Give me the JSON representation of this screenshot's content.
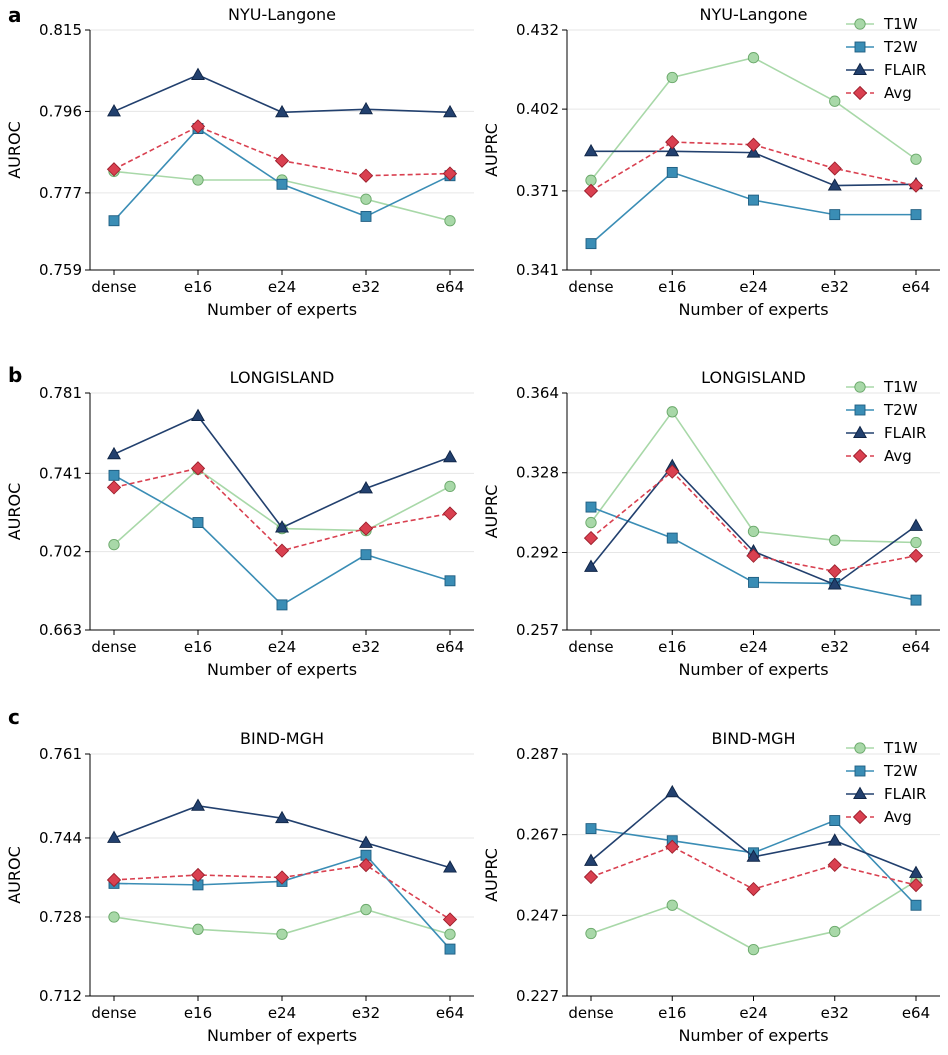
{
  "panel_letters": [
    "a",
    "b",
    "c"
  ],
  "colors": {
    "T1W": "#a8d8a8",
    "T2W": "#3a8db5",
    "FLAIR": "#22406e",
    "Avg": "#d94050",
    "grid": "#e6e6e6"
  },
  "chart_data": [
    {
      "type": "line",
      "title": "NYU-Langone",
      "xlabel": "Number of experts",
      "ylabel": "AUROC",
      "categories": [
        "dense",
        "e16",
        "e24",
        "e32",
        "e64"
      ],
      "yticks": [
        "0.759",
        "0.777",
        "0.796",
        "0.815"
      ],
      "ylim": [
        0.759,
        0.815
      ],
      "legend": false,
      "legend_position": "none",
      "series": [
        {
          "name": "T1W",
          "values": [
            0.782,
            0.78,
            0.78,
            0.7755,
            0.7705
          ]
        },
        {
          "name": "T2W",
          "values": [
            0.7705,
            0.792,
            0.779,
            0.7715,
            0.781
          ]
        },
        {
          "name": "FLAIR",
          "values": [
            0.796,
            0.8045,
            0.7958,
            0.7965,
            0.7958
          ]
        },
        {
          "name": "Avg",
          "values": [
            0.7825,
            0.7925,
            0.7845,
            0.781,
            0.7815
          ]
        }
      ]
    },
    {
      "type": "line",
      "title": "NYU-Langone",
      "xlabel": "Number of experts",
      "ylabel": "AUPRC",
      "categories": [
        "dense",
        "e16",
        "e24",
        "e32",
        "e64"
      ],
      "yticks": [
        "0.341",
        "0.371",
        "0.402",
        "0.432"
      ],
      "ylim": [
        0.341,
        0.432
      ],
      "legend": true,
      "legend_position": "top-right",
      "series": [
        {
          "name": "T1W",
          "values": [
            0.375,
            0.414,
            0.4215,
            0.405,
            0.383
          ]
        },
        {
          "name": "T2W",
          "values": [
            0.351,
            0.378,
            0.3675,
            0.362,
            0.362
          ]
        },
        {
          "name": "FLAIR",
          "values": [
            0.386,
            0.386,
            0.3855,
            0.373,
            0.3735
          ]
        },
        {
          "name": "Avg",
          "values": [
            0.371,
            0.3895,
            0.3885,
            0.3795,
            0.373
          ]
        }
      ]
    },
    {
      "type": "line",
      "title": "LONGISLAND",
      "xlabel": "Number of experts",
      "ylabel": "AUROC",
      "categories": [
        "dense",
        "e16",
        "e24",
        "e32",
        "e64"
      ],
      "yticks": [
        "0.663",
        "0.702",
        "0.741",
        "0.781"
      ],
      "ylim": [
        0.663,
        0.781
      ],
      "legend": false,
      "legend_position": "none",
      "series": [
        {
          "name": "T1W",
          "values": [
            0.7055,
            0.743,
            0.7135,
            0.7125,
            0.7345
          ]
        },
        {
          "name": "T2W",
          "values": [
            0.74,
            0.7165,
            0.6755,
            0.7005,
            0.6875
          ]
        },
        {
          "name": "FLAIR",
          "values": [
            0.7505,
            0.7695,
            0.714,
            0.7335,
            0.749
          ]
        },
        {
          "name": "Avg",
          "values": [
            0.734,
            0.7435,
            0.7025,
            0.7135,
            0.721
          ]
        }
      ]
    },
    {
      "type": "line",
      "title": "LONGISLAND",
      "xlabel": "Number of experts",
      "ylabel": "AUPRC",
      "categories": [
        "dense",
        "e16",
        "e24",
        "e32",
        "e64"
      ],
      "yticks": [
        "0.257",
        "0.292",
        "0.328",
        "0.364"
      ],
      "ylim": [
        0.257,
        0.364
      ],
      "legend": true,
      "legend_position": "top-right",
      "series": [
        {
          "name": "T1W",
          "values": [
            0.3055,
            0.3555,
            0.3015,
            0.2975,
            0.2965
          ]
        },
        {
          "name": "T2W",
          "values": [
            0.3125,
            0.2985,
            0.2785,
            0.278,
            0.2705
          ]
        },
        {
          "name": "FLAIR",
          "values": [
            0.2855,
            0.331,
            0.2925,
            0.2775,
            0.304
          ]
        },
        {
          "name": "Avg",
          "values": [
            0.2985,
            0.3285,
            0.2905,
            0.2835,
            0.2905
          ]
        }
      ]
    },
    {
      "type": "line",
      "title": "BIND-MGH",
      "xlabel": "Number of experts",
      "ylabel": "AUROC",
      "categories": [
        "dense",
        "e16",
        "e24",
        "e32",
        "e64"
      ],
      "yticks": [
        "0.712",
        "0.728",
        "0.744",
        "0.761"
      ],
      "ylim": [
        0.712,
        0.761
      ],
      "legend": false,
      "legend_position": "none",
      "series": [
        {
          "name": "T1W",
          "values": [
            0.728,
            0.7255,
            0.7245,
            0.7295,
            0.7245
          ]
        },
        {
          "name": "T2W",
          "values": [
            0.7348,
            0.7345,
            0.7352,
            0.7405,
            0.7215
          ]
        },
        {
          "name": "FLAIR",
          "values": [
            0.744,
            0.7505,
            0.748,
            0.743,
            0.738
          ]
        },
        {
          "name": "Avg",
          "values": [
            0.7355,
            0.7365,
            0.736,
            0.7385,
            0.7275
          ]
        }
      ]
    },
    {
      "type": "line",
      "title": "BIND-MGH",
      "xlabel": "Number of experts",
      "ylabel": "AUPRC",
      "categories": [
        "dense",
        "e16",
        "e24",
        "e32",
        "e64"
      ],
      "yticks": [
        "0.227",
        "0.247",
        "0.267",
        "0.287"
      ],
      "ylim": [
        0.227,
        0.287
      ],
      "legend": true,
      "legend_position": "top-right",
      "series": [
        {
          "name": "T1W",
          "values": [
            0.2425,
            0.2495,
            0.2385,
            0.243,
            0.2555
          ]
        },
        {
          "name": "T2W",
          "values": [
            0.2685,
            0.2655,
            0.2625,
            0.2705,
            0.2495
          ]
        },
        {
          "name": "FLAIR",
          "values": [
            0.2605,
            0.2775,
            0.2615,
            0.2655,
            0.2575
          ]
        },
        {
          "name": "Avg",
          "values": [
            0.2565,
            0.264,
            0.2535,
            0.2595,
            0.2545
          ]
        }
      ]
    }
  ]
}
